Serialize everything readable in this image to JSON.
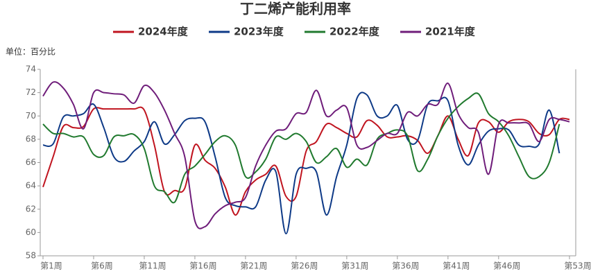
{
  "chart_data": {
    "type": "line",
    "title": "丁二烯产能利用率",
    "unit_label": "单位：百分比",
    "categories": [
      "第1周",
      null,
      null,
      null,
      null,
      "第6周",
      null,
      null,
      null,
      null,
      "第11周",
      null,
      null,
      null,
      null,
      "第16周",
      null,
      null,
      null,
      null,
      "第21周",
      null,
      null,
      null,
      null,
      "第26周",
      null,
      null,
      null,
      null,
      "第31周",
      null,
      null,
      null,
      null,
      "第36周",
      null,
      null,
      null,
      null,
      "第41周",
      null,
      null,
      null,
      null,
      "第46周",
      null,
      null,
      null,
      null,
      null,
      null,
      "第53周"
    ],
    "ylim": [
      58,
      74
    ],
    "yticks": [
      58,
      60,
      62,
      64,
      66,
      68,
      70,
      72,
      74
    ],
    "smooth": true,
    "legend": "top",
    "series": [
      {
        "name": "2024年度",
        "color": "#c0141f",
        "values": [
          63.9,
          66.5,
          69.1,
          69.0,
          69.1,
          70.6,
          70.6,
          70.6,
          70.6,
          70.6,
          70.5,
          67.5,
          63.5,
          63.6,
          63.8,
          67.5,
          66.2,
          65.5,
          63.9,
          61.5,
          63.5,
          64.5,
          65.0,
          65.7,
          63.1,
          63.1,
          67.0,
          67.8,
          69.3,
          69.0,
          68.5,
          68.2,
          69.6,
          69.2,
          68.2,
          68.2,
          68.3,
          67.9,
          66.8,
          68.3,
          70.0,
          68.0,
          66.6,
          69.4,
          69.5,
          68.6,
          69.5,
          69.7,
          69.5,
          68.5,
          68.4,
          69.7,
          69.7
        ]
      },
      {
        "name": "2023年度",
        "color": "#0e3a87",
        "values": [
          67.5,
          67.6,
          69.9,
          70.0,
          70.2,
          71.0,
          69.0,
          66.5,
          66.1,
          67.0,
          67.8,
          69.5,
          67.6,
          68.4,
          69.6,
          69.8,
          69.5,
          66.5,
          63.0,
          62.3,
          62.2,
          62.2,
          64.5,
          65.2,
          59.9,
          65.0,
          65.5,
          65.2,
          61.5,
          64.8,
          67.5,
          71.5,
          71.8,
          70.0,
          70.0,
          70.9,
          68.0,
          67.9,
          71.0,
          71.3,
          71.3,
          67.5,
          65.8,
          67.5,
          68.7,
          68.9,
          68.8,
          67.5,
          67.4,
          67.6,
          70.5,
          66.8,
          null
        ]
      },
      {
        "name": "2022年度",
        "color": "#217a2f",
        "values": [
          69.3,
          68.5,
          68.5,
          68.2,
          68.2,
          66.7,
          66.6,
          68.2,
          68.3,
          68.4,
          67.2,
          64.0,
          63.5,
          62.6,
          65.0,
          65.7,
          66.7,
          67.8,
          68.3,
          67.5,
          64.8,
          65.2,
          66.3,
          68.2,
          68.0,
          68.5,
          67.8,
          66.0,
          66.5,
          67.2,
          65.6,
          66.3,
          65.8,
          68.0,
          68.5,
          68.8,
          68.3,
          65.3,
          66.3,
          68.3,
          69.8,
          70.8,
          71.5,
          71.9,
          70.2,
          69.5,
          68.3,
          66.5,
          64.8,
          64.8,
          66.0,
          69.3,
          null
        ]
      },
      {
        "name": "2021年度",
        "color": "#6f1d7a",
        "values": [
          71.7,
          72.9,
          72.4,
          71.0,
          68.9,
          72.0,
          72.0,
          71.9,
          71.8,
          71.1,
          72.6,
          72.0,
          70.5,
          68.5,
          66.5,
          61.0,
          60.5,
          61.6,
          62.3,
          62.6,
          63.0,
          65.7,
          67.5,
          68.7,
          68.9,
          70.2,
          70.3,
          72.2,
          70.0,
          70.5,
          70.7,
          67.5,
          67.3,
          67.9,
          68.5,
          68.5,
          70.3,
          70.0,
          71.0,
          71.0,
          72.8,
          70.2,
          69.0,
          68.6,
          65.0,
          69.3,
          69.4,
          69.4,
          69.3,
          67.8,
          69.7,
          69.7,
          69.5
        ]
      }
    ]
  }
}
